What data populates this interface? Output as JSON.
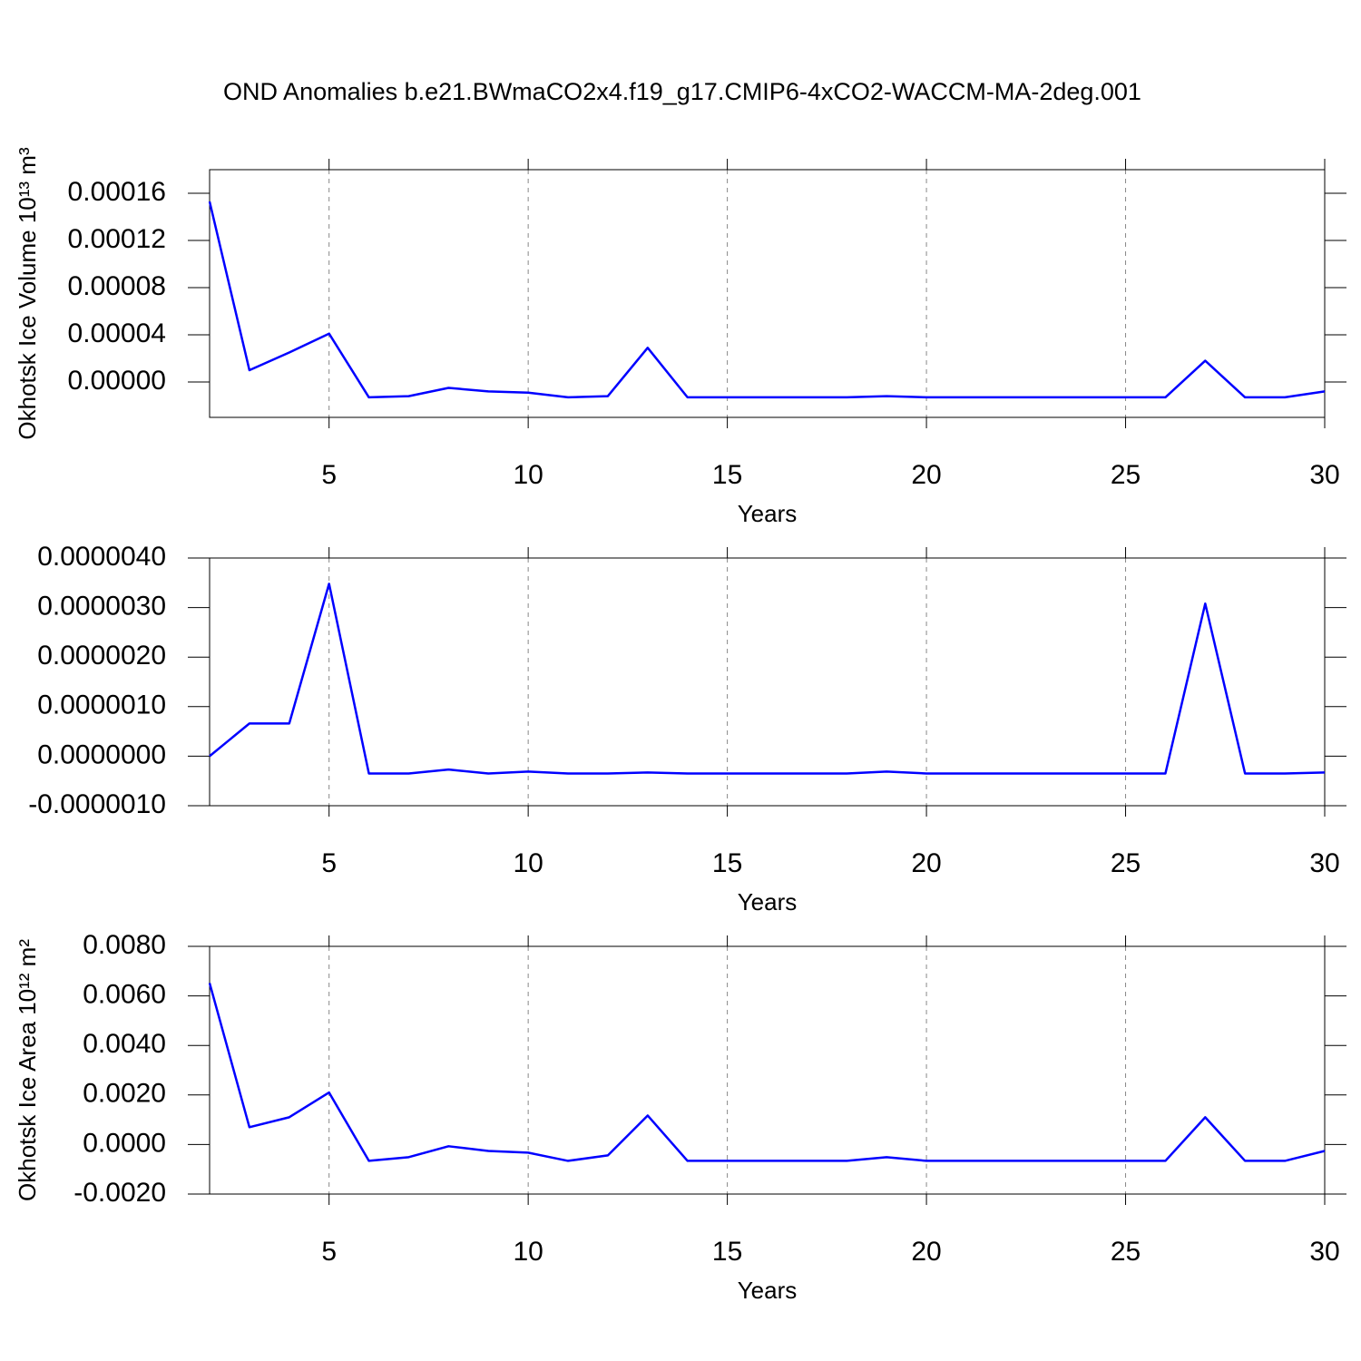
{
  "chart_data": [
    {
      "type": "line",
      "title": "OND Anomalies b.e21.BWmaCO2x4.f19_g17.CMIP6-4xCO2-WACCM-MA-2deg.001",
      "ylabel": "Okhotsk Ice Volume 10¹³ m³",
      "xlabel": "Years",
      "x": [
        2,
        3,
        4,
        5,
        6,
        7,
        8,
        9,
        10,
        11,
        12,
        13,
        14,
        15,
        16,
        17,
        18,
        19,
        20,
        21,
        22,
        23,
        24,
        25,
        26,
        27,
        28,
        29,
        30
      ],
      "series": [
        {
          "color": "#0000ff",
          "values": [
            0.000153,
            1e-05,
            2.5e-05,
            4.1e-05,
            -1.3e-05,
            -1.2e-05,
            -5e-06,
            -8e-06,
            -9e-06,
            -1.3e-05,
            -1.2e-05,
            2.9e-05,
            -1.3e-05,
            -1.3e-05,
            -1.3e-05,
            -1.3e-05,
            -1.3e-05,
            -1.2e-05,
            -1.3e-05,
            -1.3e-05,
            -1.3e-05,
            -1.3e-05,
            -1.3e-05,
            -1.3e-05,
            -1.3e-05,
            1.8e-05,
            -1.3e-05,
            -1.3e-05,
            -8e-06
          ]
        }
      ],
      "xlim": [
        2,
        30
      ],
      "xticks": [
        5,
        10,
        15,
        20,
        25,
        30
      ],
      "ylim": [
        -3e-05,
        0.00018
      ],
      "yticks": [
        {
          "value": 0,
          "label": "0.00000"
        },
        {
          "value": 4e-05,
          "label": "0.00004"
        },
        {
          "value": 8e-05,
          "label": "0.00008"
        },
        {
          "value": 0.00012,
          "label": "0.00012"
        },
        {
          "value": 0.00016,
          "label": "0.00016"
        }
      ],
      "xgrid": true
    },
    {
      "type": "line",
      "xlabel": "Years",
      "x": [
        2,
        3,
        4,
        5,
        6,
        7,
        8,
        9,
        10,
        11,
        12,
        13,
        14,
        15,
        16,
        17,
        18,
        19,
        20,
        21,
        22,
        23,
        24,
        25,
        26,
        27,
        28,
        29,
        30
      ],
      "series": [
        {
          "color": "#0000ff",
          "values": [
            0,
            6.6e-07,
            6.6e-07,
            3.48e-06,
            -3.5e-07,
            -3.5e-07,
            -2.7e-07,
            -3.5e-07,
            -3.1e-07,
            -3.5e-07,
            -3.5e-07,
            -3.3e-07,
            -3.5e-07,
            -3.5e-07,
            -3.5e-07,
            -3.5e-07,
            -3.5e-07,
            -3.1e-07,
            -3.5e-07,
            -3.5e-07,
            -3.5e-07,
            -3.5e-07,
            -3.5e-07,
            -3.5e-07,
            -3.5e-07,
            3.08e-06,
            -3.5e-07,
            -3.5e-07,
            -3.3e-07
          ]
        }
      ],
      "xlim": [
        2,
        30
      ],
      "xticks": [
        5,
        10,
        15,
        20,
        25,
        30
      ],
      "ylim": [
        -1e-06,
        4e-06
      ],
      "yticks": [
        {
          "value": -1e-06,
          "label": "-0.0000010"
        },
        {
          "value": 0,
          "label": "0.0000000"
        },
        {
          "value": 1e-06,
          "label": "0.0000010"
        },
        {
          "value": 2e-06,
          "label": "0.0000020"
        },
        {
          "value": 3e-06,
          "label": "0.0000030"
        },
        {
          "value": 4e-06,
          "label": "0.0000040"
        }
      ],
      "xgrid": true
    },
    {
      "type": "line",
      "ylabel": "Okhotsk Ice Area 10¹² m²",
      "xlabel": "Years",
      "x": [
        2,
        3,
        4,
        5,
        6,
        7,
        8,
        9,
        10,
        11,
        12,
        13,
        14,
        15,
        16,
        17,
        18,
        19,
        20,
        21,
        22,
        23,
        24,
        25,
        26,
        27,
        28,
        29,
        30
      ],
      "series": [
        {
          "color": "#0000ff",
          "values": [
            0.00652,
            0.0007,
            0.0011,
            0.0021,
            -0.00066,
            -0.00051,
            -7e-05,
            -0.00026,
            -0.00033,
            -0.00066,
            -0.00044,
            0.00117,
            -0.00066,
            -0.00066,
            -0.00066,
            -0.00066,
            -0.00066,
            -0.00051,
            -0.00066,
            -0.00066,
            -0.00066,
            -0.00066,
            -0.00066,
            -0.00066,
            -0.00066,
            0.0011,
            -0.00066,
            -0.00066,
            -0.00026
          ]
        }
      ],
      "xlim": [
        2,
        30
      ],
      "xticks": [
        5,
        10,
        15,
        20,
        25,
        30
      ],
      "ylim": [
        -0.002,
        0.008
      ],
      "yticks": [
        {
          "value": -0.002,
          "label": "-0.0020"
        },
        {
          "value": 0,
          "label": "0.0000"
        },
        {
          "value": 0.002,
          "label": "0.0020"
        },
        {
          "value": 0.004,
          "label": "0.0040"
        },
        {
          "value": 0.006,
          "label": "0.0060"
        },
        {
          "value": 0.008,
          "label": "0.0080"
        }
      ],
      "xgrid": true
    }
  ]
}
